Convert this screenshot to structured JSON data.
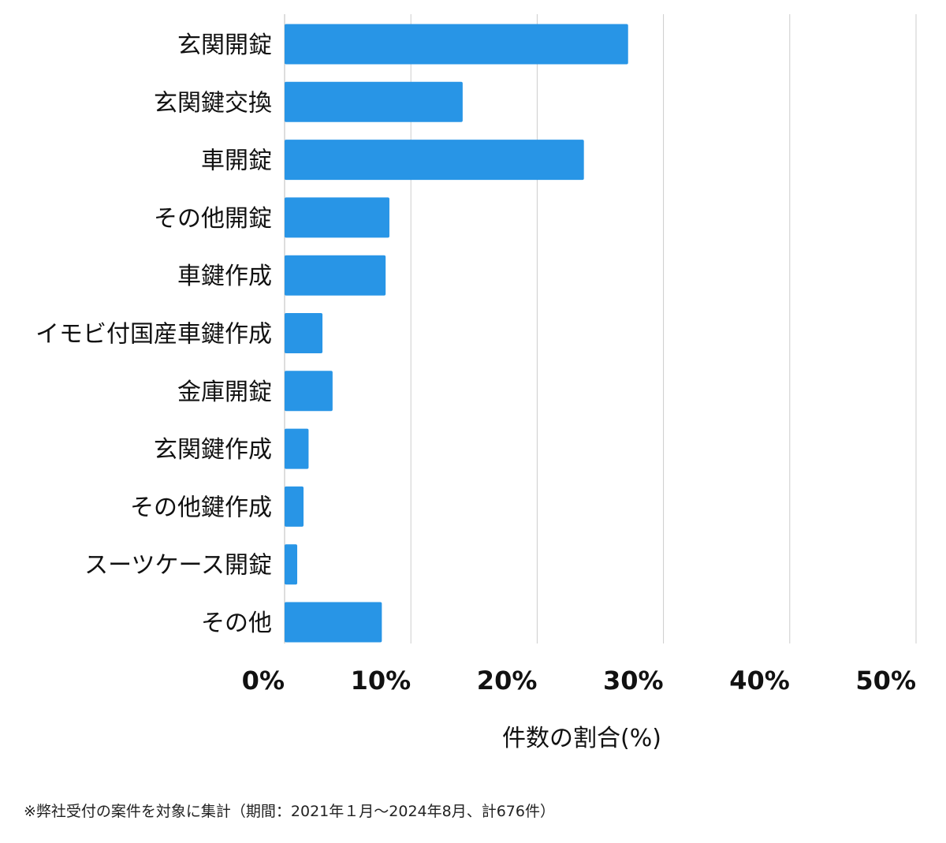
{
  "chart_data": {
    "type": "bar",
    "orientation": "horizontal",
    "categories": [
      "玄関開錠",
      "玄関鍵交換",
      "車開錠",
      "その他開錠",
      "車鍵作成",
      "イモビ付国産車鍵作成",
      "金庫開錠",
      "玄関鍵作成",
      "その他鍵作成",
      "スーツケース開錠",
      "その他"
    ],
    "values": [
      27.2,
      14.1,
      23.7,
      8.3,
      8.0,
      3.0,
      3.8,
      1.9,
      1.5,
      1.0,
      7.7
    ],
    "xlim": [
      0,
      50
    ],
    "xticks": [
      0,
      10,
      20,
      30,
      40,
      50
    ],
    "xtick_labels": [
      "0%",
      "10%",
      "20%",
      "30%",
      "40%",
      "50%"
    ],
    "xlabel": "件数の割合(%)",
    "ylabel": "",
    "title": "",
    "grid": "vertical",
    "legend": "none",
    "bar_color": "#2895e6",
    "grid_color": "#cccccc"
  },
  "footnote": "※弊社受付の案件を対象に集計（期間：2021年１月～2024年8月、計676件）"
}
